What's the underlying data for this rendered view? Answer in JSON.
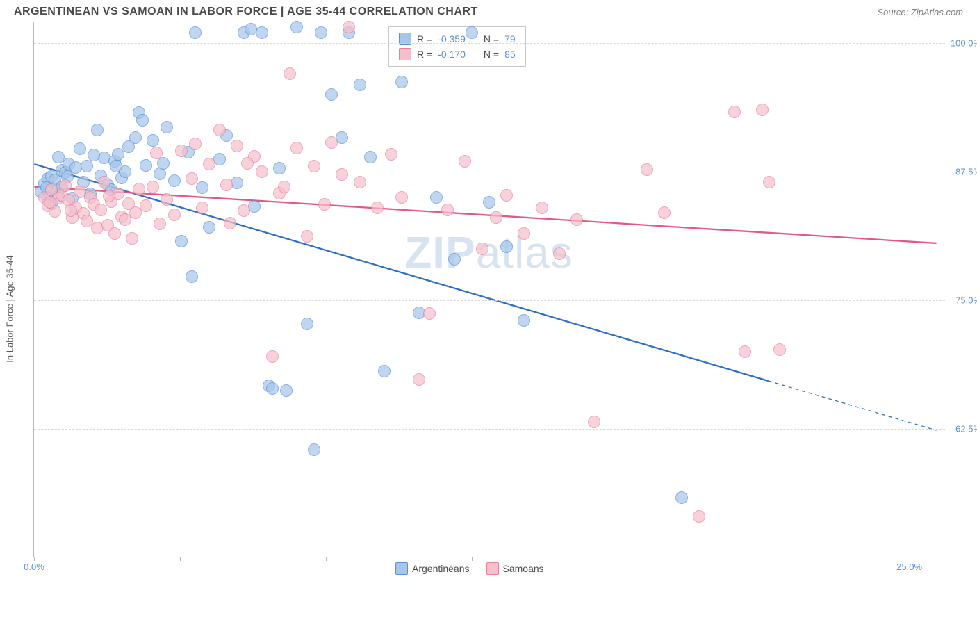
{
  "header": {
    "title": "ARGENTINEAN VS SAMOAN IN LABOR FORCE | AGE 35-44 CORRELATION CHART",
    "source": "Source: ZipAtlas.com"
  },
  "watermark": {
    "zip": "ZIP",
    "atlas": "atlas"
  },
  "chart": {
    "type": "scatter",
    "ylabel": "In Labor Force | Age 35-44",
    "background_color": "#ffffff",
    "grid_color": "#d8d8d8",
    "axis_line_color": "#b8b8b8",
    "axis_label_color": "#5a8fd6",
    "ylim": [
      50,
      102
    ],
    "xlim": [
      0,
      26
    ],
    "yticks": [
      {
        "v": 62.5,
        "label": "62.5%"
      },
      {
        "v": 75.0,
        "label": "75.0%"
      },
      {
        "v": 87.5,
        "label": "87.5%"
      },
      {
        "v": 100.0,
        "label": "100.0%"
      }
    ],
    "xticks_major": [
      0,
      25
    ],
    "xticks_minor": [
      4.17,
      8.33,
      12.5,
      16.67,
      20.83
    ],
    "x_labels": [
      {
        "v": 0,
        "label": "0.0%"
      },
      {
        "v": 25,
        "label": "25.0%"
      }
    ],
    "series": [
      {
        "name": "Argentineans",
        "fill_color": "#a6c6ea",
        "stroke_color": "#5a8fd6",
        "marker_radius": 9,
        "trend": {
          "x1": 0,
          "y1": 88.2,
          "x2": 21,
          "y2": 67.1,
          "dash_x2": 25.8,
          "dash_y2": 62.3,
          "color": "#2f6fc9",
          "width": 2.3
        },
        "stats": {
          "r": "-0.359",
          "n": "79"
        },
        "points": [
          [
            0.2,
            85.5
          ],
          [
            0.3,
            86.3
          ],
          [
            0.4,
            85.0
          ],
          [
            0.4,
            86.8
          ],
          [
            0.5,
            84.4
          ],
          [
            0.5,
            87.0
          ],
          [
            0.6,
            85.8
          ],
          [
            0.6,
            86.7
          ],
          [
            0.7,
            88.9
          ],
          [
            0.7,
            85.1
          ],
          [
            0.8,
            87.6
          ],
          [
            0.8,
            86.0
          ],
          [
            0.9,
            87.4
          ],
          [
            1.0,
            88.2
          ],
          [
            1.1,
            84.9
          ],
          [
            1.2,
            87.9
          ],
          [
            1.3,
            89.7
          ],
          [
            1.4,
            86.5
          ],
          [
            1.5,
            88.0
          ],
          [
            1.6,
            85.3
          ],
          [
            1.8,
            91.5
          ],
          [
            1.9,
            87.1
          ],
          [
            2.0,
            88.8
          ],
          [
            2.1,
            86.2
          ],
          [
            2.2,
            85.7
          ],
          [
            2.3,
            88.5
          ],
          [
            2.4,
            89.2
          ],
          [
            2.5,
            86.9
          ],
          [
            2.6,
            87.5
          ],
          [
            2.7,
            89.9
          ],
          [
            3.0,
            93.2
          ],
          [
            3.2,
            88.1
          ],
          [
            3.4,
            90.5
          ],
          [
            3.6,
            87.3
          ],
          [
            3.8,
            91.8
          ],
          [
            4.0,
            86.6
          ],
          [
            4.2,
            80.7
          ],
          [
            4.4,
            89.4
          ],
          [
            4.5,
            77.3
          ],
          [
            4.8,
            85.9
          ],
          [
            5.0,
            82.1
          ],
          [
            5.3,
            88.7
          ],
          [
            5.5,
            91.0
          ],
          [
            5.8,
            86.4
          ],
          [
            6.0,
            101.0
          ],
          [
            6.2,
            101.3
          ],
          [
            6.3,
            84.1
          ],
          [
            6.5,
            101.0
          ],
          [
            6.7,
            66.7
          ],
          [
            6.8,
            66.4
          ],
          [
            7.0,
            87.8
          ],
          [
            7.2,
            66.2
          ],
          [
            7.5,
            101.5
          ],
          [
            7.8,
            72.7
          ],
          [
            8.0,
            60.5
          ],
          [
            8.2,
            101.0
          ],
          [
            8.5,
            95.0
          ],
          [
            8.8,
            90.8
          ],
          [
            9.0,
            101.0
          ],
          [
            9.3,
            95.9
          ],
          [
            9.6,
            88.9
          ],
          [
            10.0,
            68.1
          ],
          [
            10.5,
            96.2
          ],
          [
            11.0,
            73.8
          ],
          [
            11.5,
            85.0
          ],
          [
            12.0,
            79.0
          ],
          [
            12.5,
            101.0
          ],
          [
            13.0,
            84.5
          ],
          [
            13.5,
            80.2
          ],
          [
            14.0,
            73.0
          ],
          [
            18.5,
            55.8
          ],
          [
            4.6,
            101.0
          ],
          [
            3.1,
            92.5
          ],
          [
            2.9,
            90.8
          ],
          [
            1.7,
            89.1
          ],
          [
            0.35,
            85.9
          ],
          [
            0.95,
            87.0
          ],
          [
            2.35,
            88.0
          ],
          [
            3.7,
            88.3
          ]
        ]
      },
      {
        "name": "Samoans",
        "fill_color": "#f6bfcb",
        "stroke_color": "#e97f9c",
        "marker_radius": 9,
        "trend": {
          "x1": 0,
          "y1": 86.0,
          "x2": 25.8,
          "y2": 80.5,
          "color": "#e05a82",
          "width": 2.3
        },
        "stats": {
          "r": "-0.170",
          "n": "85"
        },
        "points": [
          [
            0.3,
            85.0
          ],
          [
            0.4,
            84.2
          ],
          [
            0.5,
            85.7
          ],
          [
            0.6,
            83.6
          ],
          [
            0.7,
            84.9
          ],
          [
            0.8,
            85.2
          ],
          [
            0.9,
            86.1
          ],
          [
            1.0,
            84.7
          ],
          [
            1.1,
            83.0
          ],
          [
            1.2,
            84.0
          ],
          [
            1.3,
            85.5
          ],
          [
            1.4,
            83.4
          ],
          [
            1.5,
            82.7
          ],
          [
            1.6,
            85.0
          ],
          [
            1.7,
            84.3
          ],
          [
            1.8,
            82.0
          ],
          [
            1.9,
            83.8
          ],
          [
            2.0,
            86.5
          ],
          [
            2.1,
            82.3
          ],
          [
            2.2,
            84.6
          ],
          [
            2.3,
            81.5
          ],
          [
            2.4,
            85.3
          ],
          [
            2.5,
            83.1
          ],
          [
            2.6,
            82.8
          ],
          [
            2.7,
            84.4
          ],
          [
            2.8,
            81.0
          ],
          [
            2.9,
            83.5
          ],
          [
            3.0,
            85.8
          ],
          [
            3.2,
            84.2
          ],
          [
            3.4,
            86.0
          ],
          [
            3.6,
            82.4
          ],
          [
            3.8,
            84.8
          ],
          [
            4.0,
            83.3
          ],
          [
            4.2,
            89.5
          ],
          [
            4.5,
            86.8
          ],
          [
            4.8,
            84.0
          ],
          [
            5.0,
            88.2
          ],
          [
            5.3,
            91.5
          ],
          [
            5.5,
            86.2
          ],
          [
            5.8,
            90.0
          ],
          [
            6.0,
            83.7
          ],
          [
            6.3,
            89.0
          ],
          [
            6.5,
            87.5
          ],
          [
            6.8,
            69.5
          ],
          [
            7.0,
            85.4
          ],
          [
            7.3,
            97.0
          ],
          [
            7.5,
            89.8
          ],
          [
            7.8,
            81.2
          ],
          [
            8.0,
            88.0
          ],
          [
            8.3,
            84.3
          ],
          [
            8.5,
            90.3
          ],
          [
            9.0,
            101.5
          ],
          [
            9.3,
            86.5
          ],
          [
            9.8,
            84.0
          ],
          [
            10.2,
            89.2
          ],
          [
            10.5,
            85.0
          ],
          [
            11.0,
            67.3
          ],
          [
            11.3,
            73.7
          ],
          [
            11.8,
            83.8
          ],
          [
            12.3,
            88.5
          ],
          [
            12.8,
            80.0
          ],
          [
            13.2,
            83.0
          ],
          [
            13.5,
            85.2
          ],
          [
            14.0,
            81.5
          ],
          [
            14.5,
            84.0
          ],
          [
            15.0,
            79.5
          ],
          [
            15.5,
            82.8
          ],
          [
            16.0,
            63.2
          ],
          [
            17.5,
            87.7
          ],
          [
            18.0,
            83.5
          ],
          [
            19.0,
            54.0
          ],
          [
            20.0,
            93.3
          ],
          [
            20.3,
            70.0
          ],
          [
            20.8,
            93.5
          ],
          [
            21.0,
            86.5
          ],
          [
            21.3,
            70.2
          ],
          [
            5.6,
            82.5
          ],
          [
            4.6,
            90.2
          ],
          [
            3.5,
            89.3
          ],
          [
            2.15,
            85.1
          ],
          [
            0.45,
            84.5
          ],
          [
            1.05,
            83.7
          ],
          [
            7.15,
            86.0
          ],
          [
            8.8,
            87.2
          ],
          [
            6.1,
            88.3
          ]
        ]
      }
    ],
    "legend": {
      "items": [
        {
          "label": "Argentineans",
          "fill": "#a6c6ea",
          "stroke": "#5a8fd6"
        },
        {
          "label": "Samoans",
          "fill": "#f6bfcb",
          "stroke": "#e97f9c"
        }
      ]
    }
  }
}
